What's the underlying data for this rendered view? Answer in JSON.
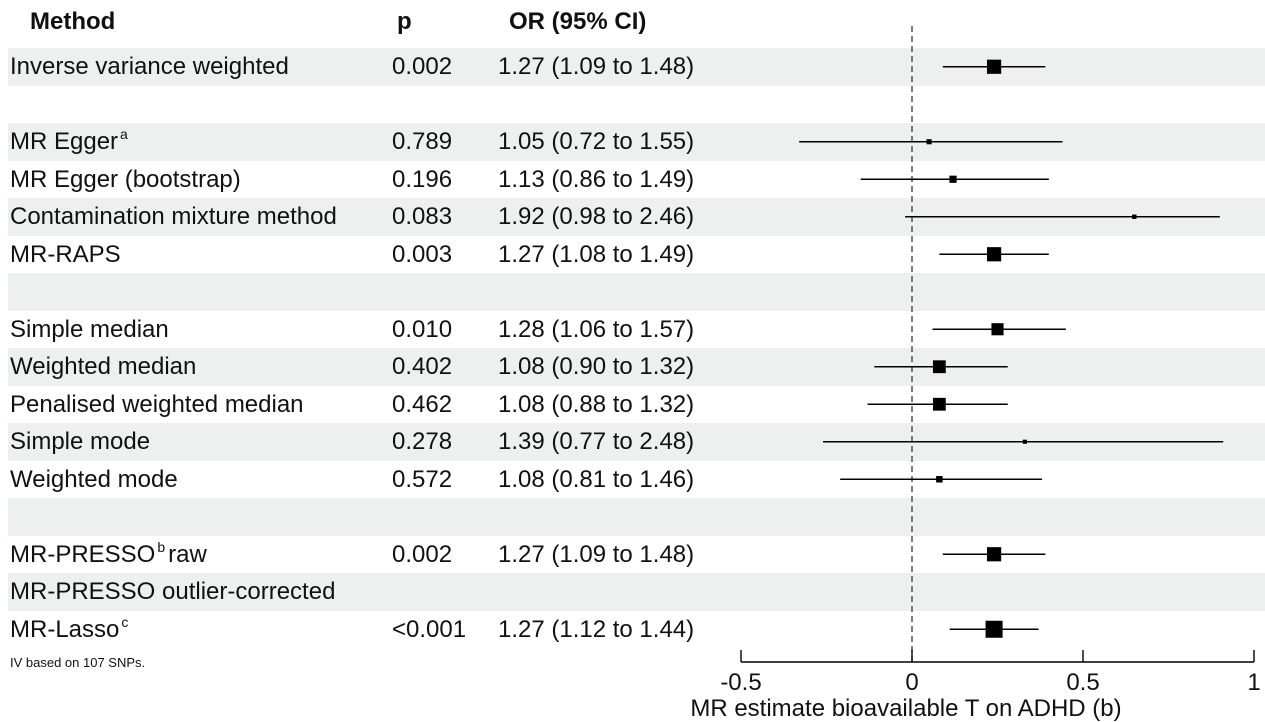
{
  "header": {
    "method": "Method",
    "p": "p",
    "or": "OR (95% CI)"
  },
  "footnote": "IV based on 107 SNPs.",
  "rows": [
    {
      "method": "Inverse variance weighted",
      "sup": "",
      "method_suffix": "",
      "p": "0.002",
      "or": "1.27 (1.09 to 1.48)"
    },
    {
      "method": "",
      "sup": "",
      "method_suffix": "",
      "p": "",
      "or": ""
    },
    {
      "method": "MR Egger",
      "sup": "a",
      "method_suffix": "",
      "p": "0.789",
      "or": "1.05 (0.72 to 1.55)"
    },
    {
      "method": "MR Egger (bootstrap)",
      "sup": "",
      "method_suffix": "",
      "p": "0.196",
      "or": "1.13 (0.86 to 1.49)"
    },
    {
      "method": "Contamination mixture method",
      "sup": "",
      "method_suffix": "",
      "p": "0.083",
      "or": "1.92 (0.98 to 2.46)"
    },
    {
      "method": "MR-RAPS",
      "sup": "",
      "method_suffix": "",
      "p": "0.003",
      "or": "1.27 (1.08 to 1.49)"
    },
    {
      "method": "",
      "sup": "",
      "method_suffix": "",
      "p": "",
      "or": ""
    },
    {
      "method": "Simple median",
      "sup": "",
      "method_suffix": "",
      "p": "0.010",
      "or": "1.28 (1.06 to 1.57)"
    },
    {
      "method": "Weighted median",
      "sup": "",
      "method_suffix": "",
      "p": "0.402",
      "or": "1.08 (0.90 to 1.32)"
    },
    {
      "method": "Penalised weighted median",
      "sup": "",
      "method_suffix": "",
      "p": "0.462",
      "or": "1.08 (0.88 to 1.32)"
    },
    {
      "method": "Simple mode",
      "sup": "",
      "method_suffix": "",
      "p": "0.278",
      "or": "1.39 (0.77 to 2.48)"
    },
    {
      "method": "Weighted mode",
      "sup": "",
      "method_suffix": "",
      "p": "0.572",
      "or": "1.08 (0.81 to 1.46)"
    },
    {
      "method": "",
      "sup": "",
      "method_suffix": "",
      "p": "",
      "or": ""
    },
    {
      "method": "MR-PRESSO",
      "sup": "b",
      "method_suffix": "raw",
      "p": "0.002",
      "or": "1.27 (1.09 to 1.48)"
    },
    {
      "method": "MR-PRESSO outlier-corrected",
      "sup": "",
      "method_suffix": "",
      "p": "",
      "or": ""
    },
    {
      "method": "MR-Lasso",
      "sup": "c",
      "method_suffix": "",
      "p": "<0.001",
      "or": "1.27 (1.12 to 1.44)"
    }
  ],
  "chart_data": {
    "type": "forest",
    "xlabel": "MR estimate bioavailable T on ADHD (b)",
    "xlim": [
      -0.5,
      1.0
    ],
    "ticks": [
      -0.5,
      0,
      0.5,
      1
    ],
    "tick_labels": [
      "-0.5",
      "0",
      "0.5",
      "1"
    ],
    "reference_line": 0,
    "reference_style": "dashed",
    "point_shape": "square",
    "point_color": "#000000",
    "shade_color": "#eef0ef",
    "estimates": [
      {
        "row": 0,
        "est": 0.24,
        "lo": 0.09,
        "hi": 0.39,
        "weight": 0.8
      },
      {
        "row": 2,
        "est": 0.05,
        "lo": -0.33,
        "hi": 0.44,
        "weight": 0.15
      },
      {
        "row": 3,
        "est": 0.12,
        "lo": -0.15,
        "hi": 0.4,
        "weight": 0.3
      },
      {
        "row": 4,
        "est": 0.65,
        "lo": -0.02,
        "hi": 0.9,
        "weight": 0.1
      },
      {
        "row": 5,
        "est": 0.24,
        "lo": 0.08,
        "hi": 0.4,
        "weight": 0.8
      },
      {
        "row": 7,
        "est": 0.25,
        "lo": 0.06,
        "hi": 0.45,
        "weight": 0.65
      },
      {
        "row": 8,
        "est": 0.08,
        "lo": -0.11,
        "hi": 0.28,
        "weight": 0.7
      },
      {
        "row": 9,
        "est": 0.08,
        "lo": -0.13,
        "hi": 0.28,
        "weight": 0.7
      },
      {
        "row": 10,
        "est": 0.33,
        "lo": -0.26,
        "hi": 0.91,
        "weight": 0.08
      },
      {
        "row": 11,
        "est": 0.08,
        "lo": -0.21,
        "hi": 0.38,
        "weight": 0.25
      },
      {
        "row": 13,
        "est": 0.24,
        "lo": 0.09,
        "hi": 0.39,
        "weight": 0.8
      },
      {
        "row": 15,
        "est": 0.24,
        "lo": 0.11,
        "hi": 0.37,
        "weight": 1.0
      }
    ]
  }
}
